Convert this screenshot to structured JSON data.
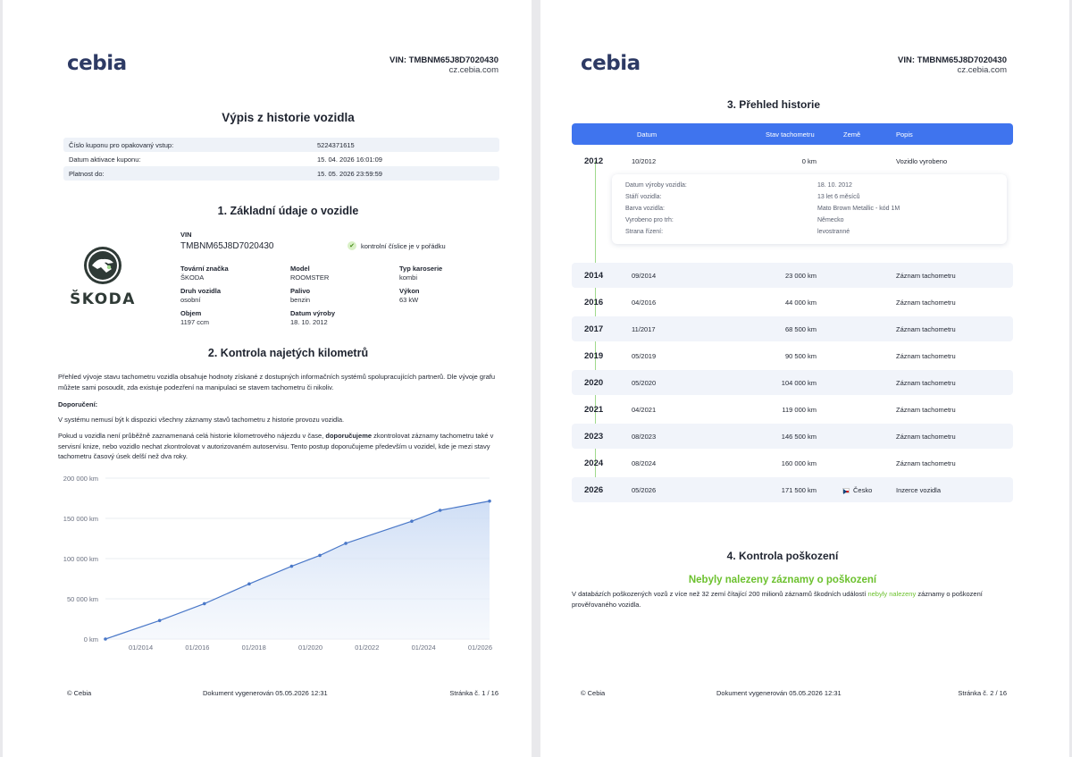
{
  "brand": "cebia",
  "vin_header": "VIN: TMBNM65J8D7020430",
  "domain": "cz.cebia.com",
  "page1": {
    "title": "Výpis z historie vozidla",
    "coupon": [
      {
        "label": "Číslo kuponu pro opakovaný vstup:",
        "value": "5224371615"
      },
      {
        "label": "Datum aktivace kuponu:",
        "value": "15. 04. 2026 16:01:09"
      },
      {
        "label": "Platnost do:",
        "value": "15. 05. 2026 23:59:59"
      }
    ],
    "section1_title": "1. Základní údaje o vozidle",
    "vin_label": "VIN",
    "vin_value": "TMBNM65J8D7020430",
    "check_text": "kontrolní číslice je v pořádku",
    "logo_text": "ŠKODA",
    "specs": {
      "brand_label": "Tovární značka",
      "brand_value": "ŠKODA",
      "model_label": "Model",
      "model_value": "ROOMSTER",
      "body_label": "Typ karoserie",
      "body_value": "kombi",
      "type_label": "Druh vozidla",
      "type_value": "osobní",
      "fuel_label": "Palivo",
      "fuel_value": "benzin",
      "power_label": "Výkon",
      "power_value": "63 kW",
      "volume_label": "Objem",
      "volume_value": "1197 ccm",
      "prod_label": "Datum výroby",
      "prod_value": "18. 10. 2012"
    },
    "section2_title": "2. Kontrola najetých kilometrů",
    "para1": "Přehled vývoje stavu tachometru vozidla obsahuje hodnoty získané z dostupných informačních systémů spolupracujících partnerů. Dle vývoje grafu můžete sami posoudit, zda existuje podezření na manipulaci se stavem tachometru či nikoliv.",
    "rec_label": "Doporučení:",
    "para2": "V systému nemusí být k dispozici všechny záznamy stavů tachometru z historie provozu vozidla.",
    "para3_a": "Pokud u vozidla není průběžně zaznamenaná celá historie kilometrového nájezdu v čase, ",
    "para3_b": "doporučujeme",
    "para3_c": " zkontrolovat záznamy tachometru také v servisní knize, nebo vozidlo nechat zkontrolovat v autorizovaném autoservisu. Tento postup doporučujeme především u vozidel, kde je mezi stavy tachometru časový úsek delší než dva roky.",
    "footer_left": "© Cebia",
    "footer_mid": "Dokument vygenerován 05.05.2026 12:31",
    "footer_right": "Stránka č. 1 / 16"
  },
  "chart_data": {
    "type": "area",
    "x": [
      "2012-10",
      "2014-09",
      "2016-04",
      "2017-11",
      "2019-05",
      "2020-05",
      "2021-04",
      "2023-08",
      "2024-08",
      "2026-05"
    ],
    "y": [
      0,
      23000,
      44000,
      68500,
      90500,
      104000,
      119000,
      146500,
      160000,
      171500
    ],
    "y_ticks": [
      "0 km",
      "50 000 km",
      "100 000 km",
      "150 000 km",
      "200 000 km"
    ],
    "x_ticks": [
      "01/2014",
      "01/2016",
      "01/2018",
      "01/2020",
      "01/2022",
      "01/2024",
      "01/2026"
    ],
    "ylim": [
      0,
      200000
    ],
    "grid": true,
    "accent": "#4a78c8"
  },
  "page2": {
    "section3_title": "3. Přehled historie",
    "head": {
      "date": "Datum",
      "km": "Stav tachometru",
      "country": "Země",
      "desc": "Popis"
    },
    "rows": [
      {
        "year": "2012",
        "date": "10/2012",
        "km": "0 km",
        "country": "",
        "desc": "Vozidlo vyrobeno"
      },
      {
        "year": "2014",
        "date": "09/2014",
        "km": "23 000 km",
        "country": "",
        "desc": "Záznam tachometru"
      },
      {
        "year": "2016",
        "date": "04/2016",
        "km": "44 000 km",
        "country": "",
        "desc": "Záznam tachometru"
      },
      {
        "year": "2017",
        "date": "11/2017",
        "km": "68 500 km",
        "country": "",
        "desc": "Záznam tachometru"
      },
      {
        "year": "2019",
        "date": "05/2019",
        "km": "90 500 km",
        "country": "",
        "desc": "Záznam tachometru"
      },
      {
        "year": "2020",
        "date": "05/2020",
        "km": "104 000 km",
        "country": "",
        "desc": "Záznam tachometru"
      },
      {
        "year": "2021",
        "date": "04/2021",
        "km": "119 000 km",
        "country": "",
        "desc": "Záznam tachometru"
      },
      {
        "year": "2023",
        "date": "08/2023",
        "km": "146 500 km",
        "country": "",
        "desc": "Záznam tachometru"
      },
      {
        "year": "2024",
        "date": "08/2024",
        "km": "160 000 km",
        "country": "",
        "desc": "Záznam tachometru"
      },
      {
        "year": "2026",
        "date": "05/2026",
        "km": "171 500 km",
        "country": "Česko",
        "desc": "Inzerce vozidla"
      }
    ],
    "detail": [
      {
        "label": "Datum výroby vozidla:",
        "value": "18. 10. 2012"
      },
      {
        "label": "Stáří vozidla:",
        "value": "13 let 6 měsíců"
      },
      {
        "label": "Barva vozidla:",
        "value": "Mato Brown Metallic - kód 1M"
      },
      {
        "label": "Vyrobeno pro trh:",
        "value": "Německo"
      },
      {
        "label": "Strana řízení:",
        "value": "levostranné"
      }
    ],
    "section4_title": "4. Kontrola poškození",
    "damage_title": "Nebyly nalezeny záznamy o poškození",
    "damage_a": "V databázích poškozených vozů z více než 32 zemí čítající 200 milionů záznamů škodních událostí ",
    "damage_b": "nebyly nalezeny",
    "damage_c": " záznamy o poškození prověřovaného vozidla.",
    "footer_left": "© Cebia",
    "footer_mid": "Dokument vygenerován 05.05.2026 12:31",
    "footer_right": "Stránka č. 2 / 16"
  }
}
